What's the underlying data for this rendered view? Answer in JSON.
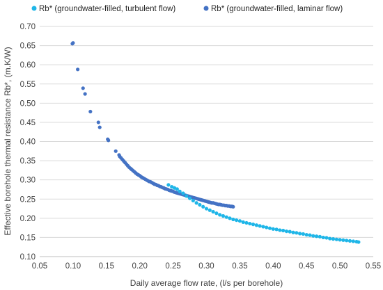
{
  "chart_data": {
    "type": "scatter",
    "xlabel": "Daily average flow rate, (l/s per borehole)",
    "ylabel": "Effective borehole thermal resistance Rb*, (m.K/W)",
    "xlim": [
      0.05,
      0.55
    ],
    "ylim": [
      0.1,
      0.7
    ],
    "xticks": [
      "0.05",
      "0.10",
      "0.15",
      "0.20",
      "0.25",
      "0.30",
      "0.35",
      "0.40",
      "0.45",
      "0.50",
      "0.55"
    ],
    "yticks": [
      "0.10",
      "0.15",
      "0.20",
      "0.25",
      "0.30",
      "0.35",
      "0.40",
      "0.45",
      "0.50",
      "0.55",
      "0.60",
      "0.65",
      "0.70"
    ],
    "grid": "horizontal",
    "legend_position": "top",
    "series": [
      {
        "name": "Rb* (groundwater-filled, turbulent flow)",
        "color": "#1fb6e8",
        "points": [
          [
            0.243,
            0.287
          ],
          [
            0.248,
            0.282
          ],
          [
            0.252,
            0.279
          ],
          [
            0.256,
            0.276
          ],
          [
            0.26,
            0.27
          ],
          [
            0.265,
            0.265
          ],
          [
            0.27,
            0.258
          ],
          [
            0.275,
            0.252
          ],
          [
            0.28,
            0.246
          ],
          [
            0.285,
            0.24
          ],
          [
            0.29,
            0.235
          ],
          [
            0.295,
            0.23
          ],
          [
            0.3,
            0.225
          ],
          [
            0.305,
            0.221
          ],
          [
            0.31,
            0.217
          ],
          [
            0.315,
            0.213
          ],
          [
            0.32,
            0.209
          ],
          [
            0.325,
            0.206
          ],
          [
            0.33,
            0.203
          ],
          [
            0.335,
            0.2
          ],
          [
            0.34,
            0.197
          ],
          [
            0.345,
            0.195
          ],
          [
            0.35,
            0.193
          ],
          [
            0.355,
            0.19
          ],
          [
            0.36,
            0.188
          ],
          [
            0.365,
            0.186
          ],
          [
            0.37,
            0.184
          ],
          [
            0.375,
            0.182
          ],
          [
            0.38,
            0.18
          ],
          [
            0.385,
            0.178
          ],
          [
            0.39,
            0.176
          ],
          [
            0.395,
            0.174
          ],
          [
            0.4,
            0.172
          ],
          [
            0.405,
            0.171
          ],
          [
            0.41,
            0.169
          ],
          [
            0.415,
            0.168
          ],
          [
            0.42,
            0.166
          ],
          [
            0.425,
            0.165
          ],
          [
            0.43,
            0.163
          ],
          [
            0.435,
            0.162
          ],
          [
            0.44,
            0.16
          ],
          [
            0.445,
            0.159
          ],
          [
            0.45,
            0.157
          ],
          [
            0.455,
            0.156
          ],
          [
            0.46,
            0.154
          ],
          [
            0.465,
            0.153
          ],
          [
            0.47,
            0.152
          ],
          [
            0.475,
            0.15
          ],
          [
            0.48,
            0.149
          ],
          [
            0.485,
            0.147
          ],
          [
            0.49,
            0.146
          ],
          [
            0.495,
            0.145
          ],
          [
            0.5,
            0.144
          ],
          [
            0.505,
            0.143
          ],
          [
            0.51,
            0.142
          ],
          [
            0.515,
            0.141
          ],
          [
            0.52,
            0.14
          ],
          [
            0.525,
            0.139
          ],
          [
            0.528,
            0.138
          ]
        ]
      },
      {
        "name": "Rb* (groundwater-filled, laminar flow)",
        "color": "#4472c4",
        "points": [
          [
            0.099,
            0.655
          ],
          [
            0.1,
            0.657
          ],
          [
            0.107,
            0.588
          ],
          [
            0.115,
            0.539
          ],
          [
            0.118,
            0.524
          ],
          [
            0.126,
            0.478
          ],
          [
            0.138,
            0.45
          ],
          [
            0.14,
            0.437
          ],
          [
            0.152,
            0.406
          ],
          [
            0.153,
            0.403
          ],
          [
            0.164,
            0.375
          ],
          [
            0.169,
            0.365
          ],
          [
            0.17,
            0.361
          ],
          [
            0.172,
            0.357
          ],
          [
            0.174,
            0.353
          ],
          [
            0.176,
            0.349
          ],
          [
            0.178,
            0.345
          ],
          [
            0.18,
            0.341
          ],
          [
            0.182,
            0.337
          ],
          [
            0.184,
            0.333
          ],
          [
            0.186,
            0.33
          ],
          [
            0.188,
            0.327
          ],
          [
            0.19,
            0.324
          ],
          [
            0.192,
            0.321
          ],
          [
            0.194,
            0.318
          ],
          [
            0.196,
            0.315
          ],
          [
            0.198,
            0.313
          ],
          [
            0.2,
            0.311
          ],
          [
            0.202,
            0.308
          ],
          [
            0.204,
            0.306
          ],
          [
            0.206,
            0.304
          ],
          [
            0.208,
            0.302
          ],
          [
            0.21,
            0.3
          ],
          [
            0.212,
            0.298
          ],
          [
            0.214,
            0.296
          ],
          [
            0.216,
            0.295
          ],
          [
            0.218,
            0.293
          ],
          [
            0.22,
            0.291
          ],
          [
            0.222,
            0.289
          ],
          [
            0.224,
            0.288
          ],
          [
            0.226,
            0.286
          ],
          [
            0.228,
            0.285
          ],
          [
            0.23,
            0.283
          ],
          [
            0.232,
            0.282
          ],
          [
            0.234,
            0.28
          ],
          [
            0.236,
            0.279
          ],
          [
            0.238,
            0.277
          ],
          [
            0.24,
            0.276
          ],
          [
            0.242,
            0.275
          ],
          [
            0.244,
            0.273
          ],
          [
            0.246,
            0.272
          ],
          [
            0.248,
            0.271
          ],
          [
            0.25,
            0.27
          ],
          [
            0.252,
            0.268
          ],
          [
            0.254,
            0.267
          ],
          [
            0.256,
            0.266
          ],
          [
            0.258,
            0.265
          ],
          [
            0.26,
            0.264
          ],
          [
            0.262,
            0.263
          ],
          [
            0.264,
            0.262
          ],
          [
            0.266,
            0.261
          ],
          [
            0.268,
            0.26
          ],
          [
            0.27,
            0.259
          ],
          [
            0.272,
            0.258
          ],
          [
            0.274,
            0.257
          ],
          [
            0.276,
            0.256
          ],
          [
            0.278,
            0.255
          ],
          [
            0.28,
            0.254
          ],
          [
            0.282,
            0.253
          ],
          [
            0.284,
            0.252
          ],
          [
            0.286,
            0.251
          ],
          [
            0.288,
            0.25
          ],
          [
            0.29,
            0.249
          ],
          [
            0.292,
            0.248
          ],
          [
            0.294,
            0.247
          ],
          [
            0.296,
            0.246
          ],
          [
            0.298,
            0.245
          ],
          [
            0.3,
            0.244
          ],
          [
            0.302,
            0.243
          ],
          [
            0.304,
            0.242
          ],
          [
            0.306,
            0.241
          ],
          [
            0.308,
            0.24
          ],
          [
            0.31,
            0.24
          ],
          [
            0.312,
            0.239
          ],
          [
            0.314,
            0.238
          ],
          [
            0.316,
            0.237
          ],
          [
            0.318,
            0.236
          ],
          [
            0.32,
            0.236
          ],
          [
            0.322,
            0.235
          ],
          [
            0.324,
            0.234
          ],
          [
            0.326,
            0.234
          ],
          [
            0.328,
            0.233
          ],
          [
            0.33,
            0.233
          ],
          [
            0.332,
            0.232
          ],
          [
            0.334,
            0.232
          ],
          [
            0.336,
            0.231
          ],
          [
            0.338,
            0.231
          ],
          [
            0.34,
            0.23
          ]
        ]
      }
    ]
  }
}
